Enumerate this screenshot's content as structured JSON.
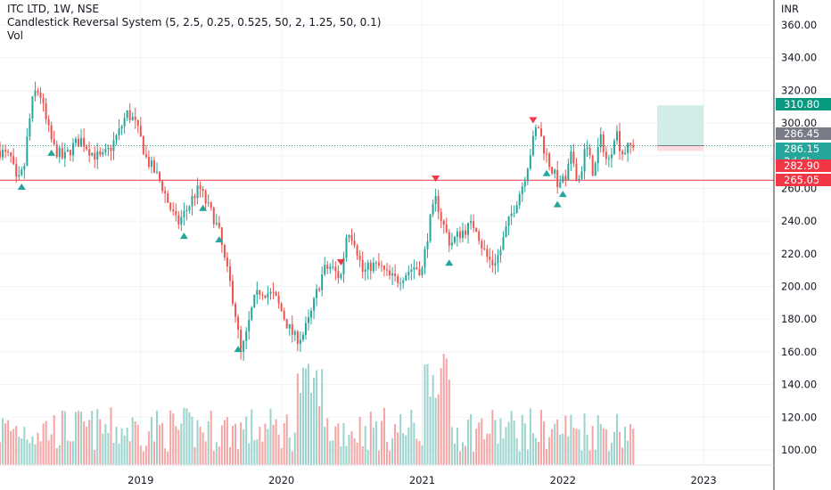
{
  "legend": {
    "title": "ITC LTD, 1W, NSE",
    "indicator": "Candlestick Reversal System (5, 2.5, 0.25, 0.525, 50, 2, 1.25, 50, 0.1)",
    "volume": "Vol"
  },
  "colors": {
    "up": "#26a69a",
    "down": "#ef5350",
    "vol_up": "#9bd3cd",
    "vol_down": "#f5a5a4",
    "last_price": "#26a69a",
    "stop": "#f23645",
    "target": "#089981",
    "projection": "#787b86",
    "grid": "#f0f3fa",
    "text": "#131722"
  },
  "axis": {
    "currency": "INR",
    "price_labels": [
      "360.00",
      "340.00",
      "320.00",
      "300.00",
      "260.00",
      "240.00",
      "220.00",
      "200.00",
      "180.00",
      "160.00",
      "140.00",
      "120.00",
      "100.00"
    ],
    "year_labels": [
      "2019",
      "2020",
      "2021",
      "2022",
      "2023"
    ]
  },
  "price_tags": [
    {
      "label": "310.80",
      "value": 310.8,
      "color": "#089981"
    },
    {
      "label": "286.45",
      "value": 286.45,
      "color": "#787b86"
    },
    {
      "label": "286.15",
      "sub": "2d 6h",
      "value": 286.15,
      "color": "#26a69a"
    },
    {
      "label": "282.90",
      "value": 282.9,
      "color": "#f23645"
    },
    {
      "label": "265.05",
      "value": 265.05,
      "color": "#f23645"
    }
  ],
  "chart_data": {
    "type": "candlestick",
    "title": "ITC LTD, 1W, NSE",
    "ylabel": "INR",
    "ylim": [
      88,
      368
    ],
    "xlim": [
      2018.0,
      2023.5
    ],
    "horizontal_line": 265.05,
    "last_price": 286.15,
    "risk_reward_box": {
      "x_start": 2022.67,
      "x_end": 2023.0,
      "entry": 286.15,
      "target": 310.8,
      "stop": 282.9
    },
    "waypoints": [
      [
        2018.0,
        283
      ],
      [
        2018.08,
        278
      ],
      [
        2018.12,
        262
      ],
      [
        2018.17,
        272
      ],
      [
        2018.2,
        296
      ],
      [
        2018.24,
        318
      ],
      [
        2018.28,
        320
      ],
      [
        2018.33,
        300
      ],
      [
        2018.38,
        285
      ],
      [
        2018.45,
        278
      ],
      [
        2018.52,
        286
      ],
      [
        2018.58,
        290
      ],
      [
        2018.65,
        282
      ],
      [
        2018.72,
        278
      ],
      [
        2018.78,
        284
      ],
      [
        2018.85,
        295
      ],
      [
        2018.9,
        306
      ],
      [
        2018.95,
        302
      ],
      [
        2019.0,
        290
      ],
      [
        2019.04,
        278
      ],
      [
        2019.1,
        270
      ],
      [
        2019.15,
        262
      ],
      [
        2019.2,
        250
      ],
      [
        2019.26,
        238
      ],
      [
        2019.32,
        246
      ],
      [
        2019.38,
        256
      ],
      [
        2019.42,
        260
      ],
      [
        2019.47,
        250
      ],
      [
        2019.52,
        242
      ],
      [
        2019.56,
        232
      ],
      [
        2019.6,
        214
      ],
      [
        2019.64,
        200
      ],
      [
        2019.68,
        180
      ],
      [
        2019.71,
        158
      ],
      [
        2019.75,
        170
      ],
      [
        2019.8,
        190
      ],
      [
        2019.85,
        198
      ],
      [
        2019.9,
        196
      ],
      [
        2019.95,
        194
      ],
      [
        2020.0,
        185
      ],
      [
        2020.05,
        175
      ],
      [
        2020.1,
        168
      ],
      [
        2020.15,
        170
      ],
      [
        2020.2,
        180
      ],
      [
        2020.25,
        196
      ],
      [
        2020.3,
        210
      ],
      [
        2020.35,
        212
      ],
      [
        2020.42,
        205
      ],
      [
        2020.47,
        236
      ],
      [
        2020.52,
        228
      ],
      [
        2020.58,
        208
      ],
      [
        2020.64,
        213
      ],
      [
        2020.7,
        212
      ],
      [
        2020.76,
        206
      ],
      [
        2020.82,
        204
      ],
      [
        2020.88,
        208
      ],
      [
        2020.94,
        212
      ],
      [
        2021.0,
        210
      ],
      [
        2021.05,
        238
      ],
      [
        2021.1,
        254
      ],
      [
        2021.14,
        240
      ],
      [
        2021.2,
        226
      ],
      [
        2021.26,
        232
      ],
      [
        2021.32,
        236
      ],
      [
        2021.38,
        238
      ],
      [
        2021.42,
        226
      ],
      [
        2021.46,
        218
      ],
      [
        2021.5,
        214
      ],
      [
        2021.55,
        220
      ],
      [
        2021.6,
        236
      ],
      [
        2021.66,
        250
      ],
      [
        2021.72,
        264
      ],
      [
        2021.78,
        286
      ],
      [
        2021.82,
        300
      ],
      [
        2021.86,
        286
      ],
      [
        2021.9,
        276
      ],
      [
        2021.94,
        268
      ],
      [
        2021.98,
        260
      ],
      [
        2022.0,
        268
      ]
    ],
    "markers": [
      {
        "x": 2018.15,
        "type": "bullish"
      },
      {
        "x": 2018.36,
        "type": "bullish"
      },
      {
        "x": 2019.3,
        "type": "bullish"
      },
      {
        "x": 2019.45,
        "type": "bullish"
      },
      {
        "x": 2019.55,
        "type": "bullish"
      },
      {
        "x": 2019.7,
        "type": "bullish"
      },
      {
        "x": 2020.42,
        "type": "bearish"
      },
      {
        "x": 2021.1,
        "type": "bearish"
      },
      {
        "x": 2021.2,
        "type": "bullish"
      },
      {
        "x": 2021.78,
        "type": "bearish"
      },
      {
        "x": 2021.88,
        "type": "bullish"
      },
      {
        "x": 2021.96,
        "type": "bullish"
      },
      {
        "x": 2022.0,
        "type": "bullish"
      }
    ]
  }
}
